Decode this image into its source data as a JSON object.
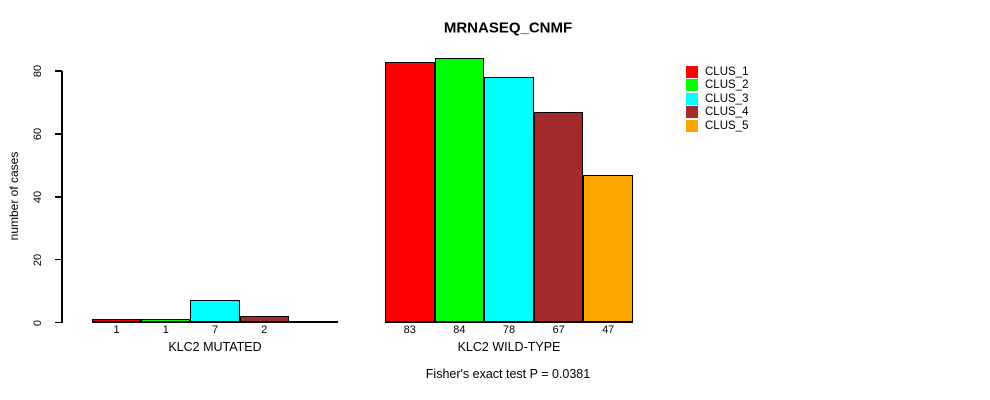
{
  "chart_data": {
    "type": "bar",
    "title": "MRNASEQ_CNMF",
    "ylabel": "number of cases",
    "xlabel": "",
    "ylim": [
      0,
      80
    ],
    "yticks": [
      0,
      20,
      40,
      60,
      80
    ],
    "grid": false,
    "legend_position": "right",
    "categories": [
      "KLC2 MUTATED",
      "KLC2 WILD-TYPE"
    ],
    "series": [
      {
        "name": "CLUS_1",
        "color": "#FF0000",
        "values": [
          1,
          83
        ]
      },
      {
        "name": "CLUS_2",
        "color": "#00FF00",
        "values": [
          1,
          84
        ]
      },
      {
        "name": "CLUS_3",
        "color": "#00FFFF",
        "values": [
          7,
          78
        ]
      },
      {
        "name": "CLUS_4",
        "color": "#A52A2A",
        "values": [
          2,
          67
        ]
      },
      {
        "name": "CLUS_5",
        "color": "#FFA500",
        "values": [
          0,
          47
        ]
      }
    ],
    "bar_value_labels": [
      [
        "1",
        "1",
        "7",
        "2",
        ""
      ],
      [
        "83",
        "84",
        "78",
        "67",
        "47"
      ]
    ],
    "annotation": "Fisher's exact test P = 0.0381",
    "axis_color": "#000000",
    "background_color": "#FFFFFF"
  }
}
